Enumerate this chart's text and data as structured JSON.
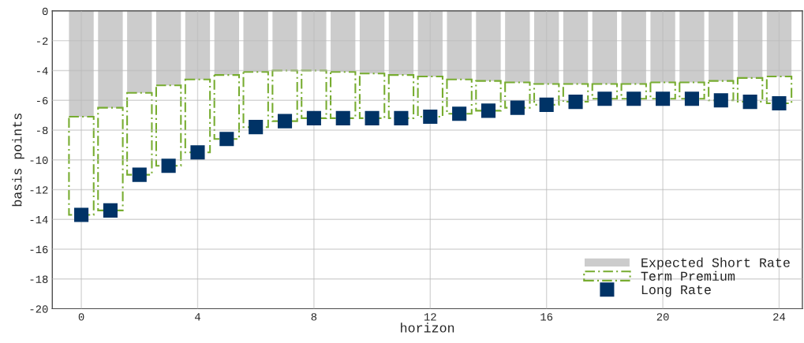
{
  "chart_data": {
    "type": "bar",
    "stacked": true,
    "xlabel": "horizon",
    "ylabel": "basis points",
    "x": [
      0,
      1,
      2,
      3,
      4,
      5,
      6,
      7,
      8,
      9,
      10,
      11,
      12,
      13,
      14,
      15,
      16,
      17,
      18,
      19,
      20,
      21,
      22,
      23,
      24
    ],
    "series": [
      {
        "name": "Expected Short Rate",
        "color": "#cccccc",
        "values": [
          -7.1,
          -6.5,
          -5.5,
          -5.0,
          -4.6,
          -4.3,
          -4.1,
          -4.0,
          -4.0,
          -4.1,
          -4.2,
          -4.3,
          -4.4,
          -4.6,
          -4.7,
          -4.8,
          -4.9,
          -4.9,
          -4.9,
          -4.9,
          -4.8,
          -4.8,
          -4.7,
          -4.5,
          -4.4
        ]
      },
      {
        "name": "Term Premium",
        "color": "#77ac30",
        "line_style": "dashed",
        "values": [
          -6.6,
          -6.9,
          -5.5,
          -5.4,
          -4.9,
          -4.3,
          -3.7,
          -3.4,
          -3.2,
          -3.1,
          -3.0,
          -2.9,
          -2.7,
          -2.3,
          -2.0,
          -1.7,
          -1.4,
          -1.2,
          -1.0,
          -1.0,
          -1.1,
          -1.1,
          -1.3,
          -1.6,
          -1.8
        ]
      },
      {
        "name": "Long Rate",
        "type": "scatter",
        "marker": "square",
        "color": "#003366",
        "values": [
          -13.7,
          -13.4,
          -11.0,
          -10.4,
          -9.5,
          -8.6,
          -7.8,
          -7.4,
          -7.2,
          -7.2,
          -7.2,
          -7.2,
          -7.1,
          -6.9,
          -6.7,
          -6.5,
          -6.3,
          -6.1,
          -5.9,
          -5.9,
          -5.9,
          -5.9,
          -6.0,
          -6.1,
          -6.2
        ]
      }
    ],
    "xlim": [
      -1,
      24.8
    ],
    "xticks": [
      0,
      4,
      8,
      12,
      16,
      20,
      24
    ],
    "ylim": [
      -20,
      0
    ],
    "yticks": [
      -20,
      -18,
      -16,
      -14,
      -12,
      -10,
      -8,
      -6,
      -4,
      -2,
      0
    ],
    "grid": true,
    "legend": "bottom right"
  }
}
